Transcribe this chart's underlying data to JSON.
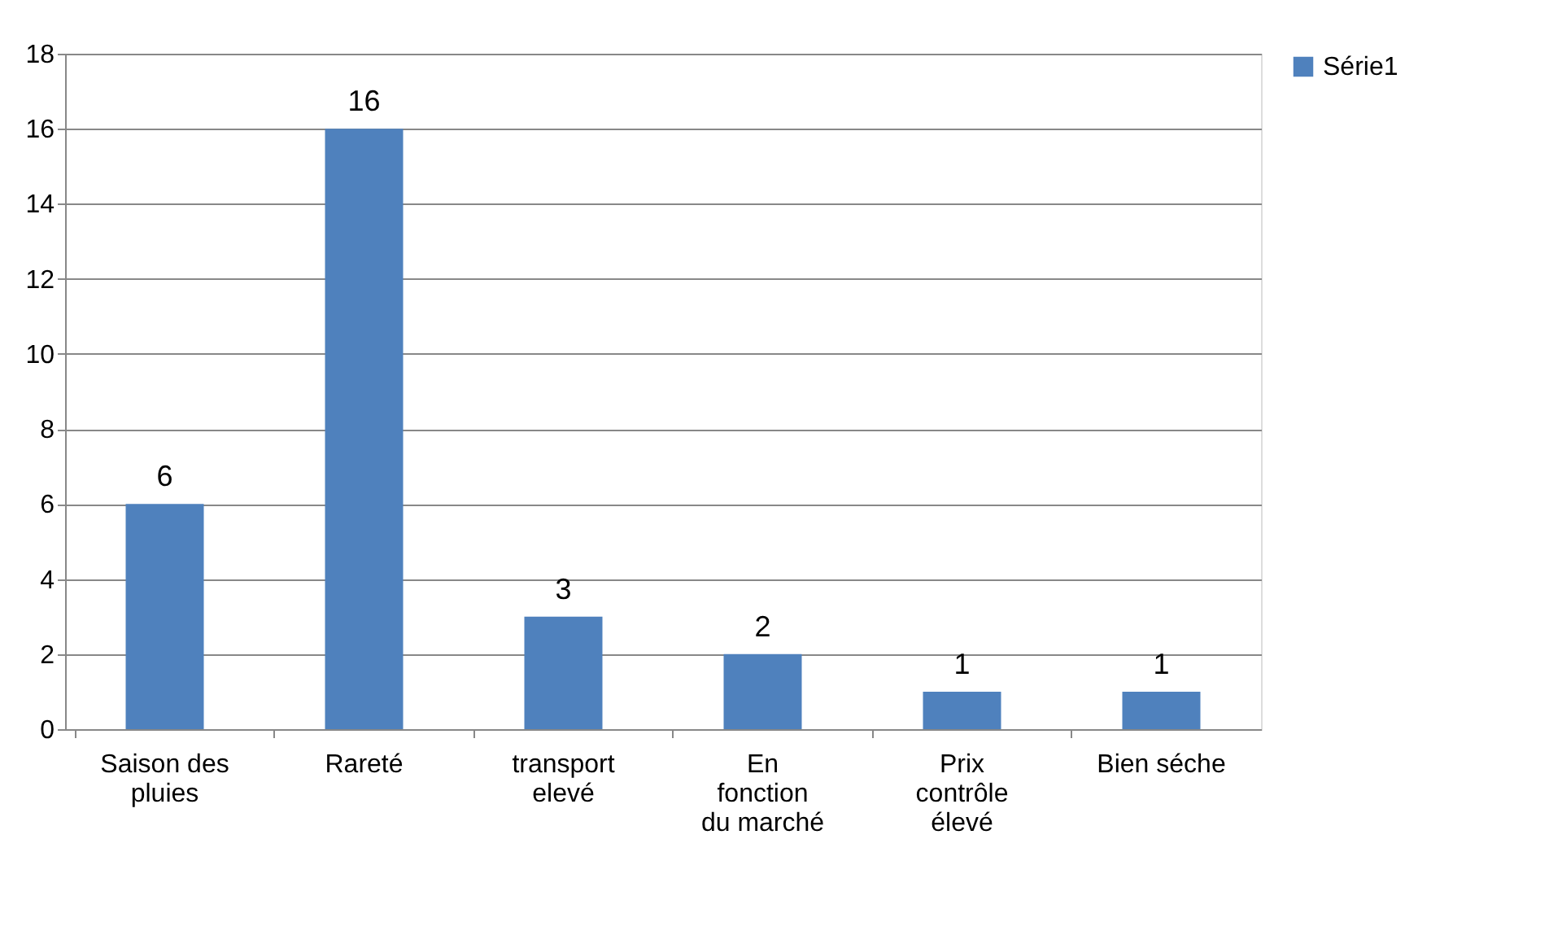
{
  "chart_data": {
    "type": "bar",
    "categories": [
      "Saison des pluies",
      "Rareté",
      "transport elevé",
      "En fonction du marché",
      "Prix contrôle élevé",
      "Bien séche"
    ],
    "series": [
      {
        "name": "Série1",
        "color": "#4f81bd",
        "values": [
          6,
          16,
          3,
          2,
          1,
          1
        ]
      }
    ],
    "ylim": [
      0,
      18
    ],
    "yticks": [
      0,
      2,
      4,
      6,
      8,
      10,
      12,
      14,
      16,
      18
    ],
    "grid": "y",
    "legend": "right",
    "data_labels": true
  }
}
